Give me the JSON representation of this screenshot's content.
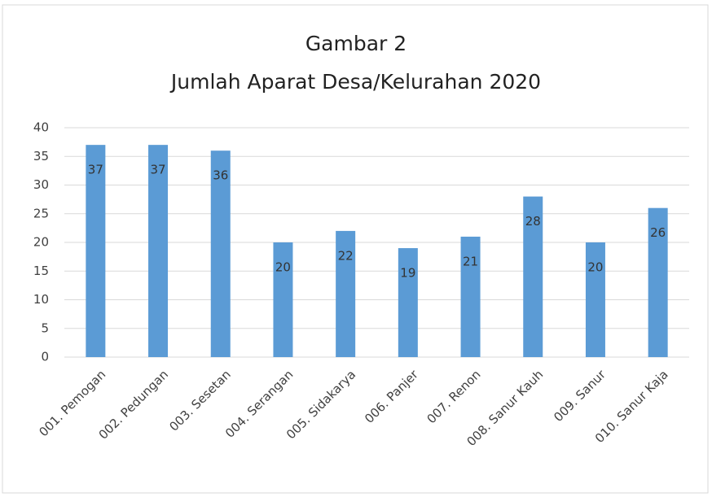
{
  "chart_data": {
    "type": "bar",
    "title": "Gambar 2",
    "subtitle": "Jumlah Aparat Desa/Kelurahan 2020",
    "categories": [
      "001. Pemogan",
      "002. Pedungan",
      "003. Sesetan",
      "004. Serangan",
      "005. Sidakarya",
      "006. Panjer",
      "007. Renon",
      "008. Sanur Kauh",
      "009. Sanur",
      "010. Sanur Kaja"
    ],
    "values": [
      37,
      37,
      36,
      20,
      22,
      19,
      21,
      28,
      20,
      26
    ],
    "color": "#5b9bd5",
    "ylim": [
      0,
      40
    ],
    "yticks": [
      0,
      5,
      10,
      15,
      20,
      25,
      30,
      35,
      40
    ],
    "grid": true
  }
}
